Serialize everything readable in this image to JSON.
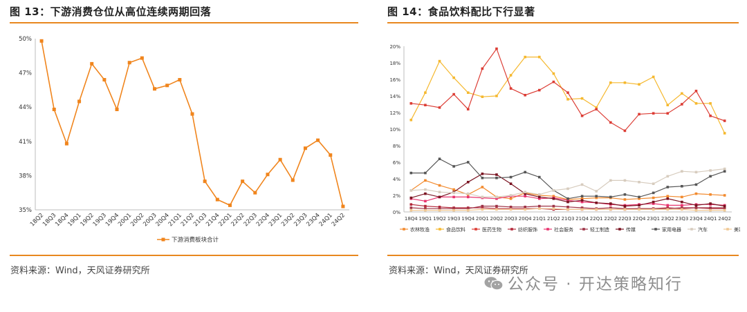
{
  "left": {
    "title": "图 13：下游消费仓位从高位连续两期回落",
    "source": "资料来源：Wind，天风证券研究所"
  },
  "right": {
    "title": "图 14：食品饮料配比下行显著",
    "source": "资料来源：Wind，天风证券研究所"
  },
  "watermark": "公众号 · 开达策略知行",
  "chart_data": [
    {
      "type": "line",
      "title": "",
      "categories": [
        "18Q2",
        "18Q3",
        "18Q4",
        "19Q1",
        "19Q2",
        "19Q3",
        "19Q4",
        "20Q1",
        "20Q2",
        "20Q3",
        "20Q4",
        "21Q1",
        "21Q2",
        "21Q3",
        "21Q4",
        "22Q1",
        "22Q2",
        "22Q3",
        "22Q4",
        "23Q1",
        "23Q2",
        "23Q3",
        "23Q4",
        "24Q1",
        "24Q2"
      ],
      "ylim": [
        35,
        50
      ],
      "yticks": [
        35,
        38,
        41,
        44,
        47,
        50
      ],
      "ytick_labels": [
        "35%",
        "38%",
        "41%",
        "44%",
        "47%",
        "50%"
      ],
      "series": [
        {
          "name": "下游消费板块合计",
          "color": "#f0851d",
          "values": [
            49.8,
            43.8,
            40.8,
            44.5,
            47.8,
            46.4,
            43.8,
            47.9,
            48.3,
            45.6,
            45.9,
            46.4,
            43.4,
            37.5,
            35.9,
            35.4,
            37.5,
            36.5,
            38.1,
            39.4,
            37.6,
            40.4,
            41.1,
            39.8,
            35.3
          ]
        }
      ]
    },
    {
      "type": "line",
      "title": "",
      "categories": [
        "18Q4",
        "19Q1",
        "19Q2",
        "19Q3",
        "19Q4",
        "20Q1",
        "20Q2",
        "20Q3",
        "20Q4",
        "21Q1",
        "21Q2",
        "21Q3",
        "21Q4",
        "22Q1",
        "22Q2",
        "22Q3",
        "22Q4",
        "23Q1",
        "23Q2",
        "23Q3",
        "23Q4",
        "24Q1",
        "24Q2"
      ],
      "ylim": [
        0,
        20
      ],
      "yticks": [
        0,
        2,
        4,
        6,
        8,
        10,
        12,
        14,
        16,
        18,
        20
      ],
      "ytick_labels": [
        "0%",
        "2%",
        "4%",
        "6%",
        "8%",
        "10%",
        "12%",
        "14%",
        "16%",
        "18%",
        "20%"
      ],
      "series": [
        {
          "name": "农林牧渔",
          "color": "#f28a2e",
          "values": [
            2.6,
            3.8,
            3.2,
            2.7,
            2.1,
            3.0,
            1.8,
            1.6,
            2.3,
            2.0,
            1.9,
            1.5,
            1.6,
            1.7,
            1.7,
            1.5,
            1.6,
            1.7,
            1.9,
            1.8,
            2.2,
            2.1,
            2.0
          ]
        },
        {
          "name": "食品饮料",
          "color": "#f5b82e",
          "values": [
            11.1,
            14.4,
            18.2,
            16.2,
            14.4,
            13.9,
            14.0,
            16.5,
            18.7,
            18.7,
            16.7,
            13.6,
            13.7,
            12.6,
            15.6,
            15.6,
            15.4,
            16.3,
            12.9,
            14.3,
            13.1,
            13.1,
            9.5
          ]
        },
        {
          "name": "医药生物",
          "color": "#dc3d35",
          "values": [
            13.1,
            12.9,
            12.6,
            14.2,
            12.4,
            17.3,
            19.7,
            14.9,
            14.1,
            14.7,
            15.7,
            14.4,
            11.6,
            12.4,
            10.8,
            9.8,
            11.8,
            11.9,
            11.9,
            13.0,
            14.6,
            11.6,
            11.0
          ]
        },
        {
          "name": "纺织服饰",
          "color": "#b4283a",
          "values": [
            0.9,
            0.7,
            0.6,
            0.5,
            0.5,
            0.5,
            0.4,
            0.4,
            0.4,
            0.4,
            0.3,
            0.3,
            0.3,
            0.3,
            0.3,
            0.3,
            0.4,
            0.4,
            0.5,
            0.4,
            0.5,
            0.4,
            0.4
          ]
        },
        {
          "name": "社会服务",
          "color": "#e8336e",
          "values": [
            1.6,
            1.3,
            1.8,
            1.8,
            1.8,
            1.7,
            1.6,
            1.9,
            1.9,
            1.6,
            1.7,
            1.4,
            1.2,
            1.1,
            0.9,
            0.8,
            0.9,
            1.0,
            0.8,
            0.8,
            0.9,
            0.9,
            0.8
          ]
        },
        {
          "name": "轻工制造",
          "color": "#9e3346",
          "values": [
            0.5,
            0.4,
            0.4,
            0.4,
            0.4,
            0.7,
            0.7,
            0.6,
            0.6,
            0.7,
            0.7,
            0.6,
            0.5,
            0.4,
            0.5,
            0.4,
            0.4,
            0.4,
            0.4,
            0.5,
            0.5,
            0.5,
            0.5
          ]
        },
        {
          "name": "传媒",
          "color": "#7a1321",
          "values": [
            1.7,
            2.2,
            1.8,
            2.4,
            3.6,
            4.6,
            4.5,
            3.4,
            2.2,
            1.8,
            1.6,
            1.2,
            1.4,
            1.1,
            1.0,
            0.7,
            0.8,
            1.2,
            1.6,
            1.2,
            0.8,
            1.0,
            0.7
          ]
        },
        {
          "name": "家用电器",
          "color": "#555555",
          "values": [
            4.7,
            4.7,
            6.4,
            5.5,
            6.0,
            4.1,
            4.1,
            4.2,
            4.8,
            4.2,
            2.6,
            1.6,
            1.9,
            1.9,
            1.8,
            2.1,
            1.8,
            2.3,
            3.0,
            3.1,
            3.3,
            4.3,
            4.9
          ]
        },
        {
          "name": "汽车",
          "color": "#d7ccbe",
          "values": [
            2.6,
            2.7,
            2.4,
            2.3,
            2.2,
            1.8,
            1.8,
            2.0,
            2.4,
            2.1,
            2.6,
            2.8,
            3.3,
            2.5,
            3.8,
            3.8,
            3.6,
            3.4,
            4.3,
            4.9,
            4.8,
            5.0,
            5.2
          ]
        },
        {
          "name": "美容护理",
          "color": "#f0c894",
          "values": [
            0.2,
            0.2,
            0.2,
            0.2,
            0.2,
            0.3,
            0.3,
            0.3,
            0.3,
            0.4,
            0.4,
            0.3,
            0.3,
            0.3,
            0.3,
            0.3,
            0.3,
            0.3,
            0.3,
            0.3,
            0.2,
            0.2,
            0.2
          ]
        }
      ]
    }
  ]
}
